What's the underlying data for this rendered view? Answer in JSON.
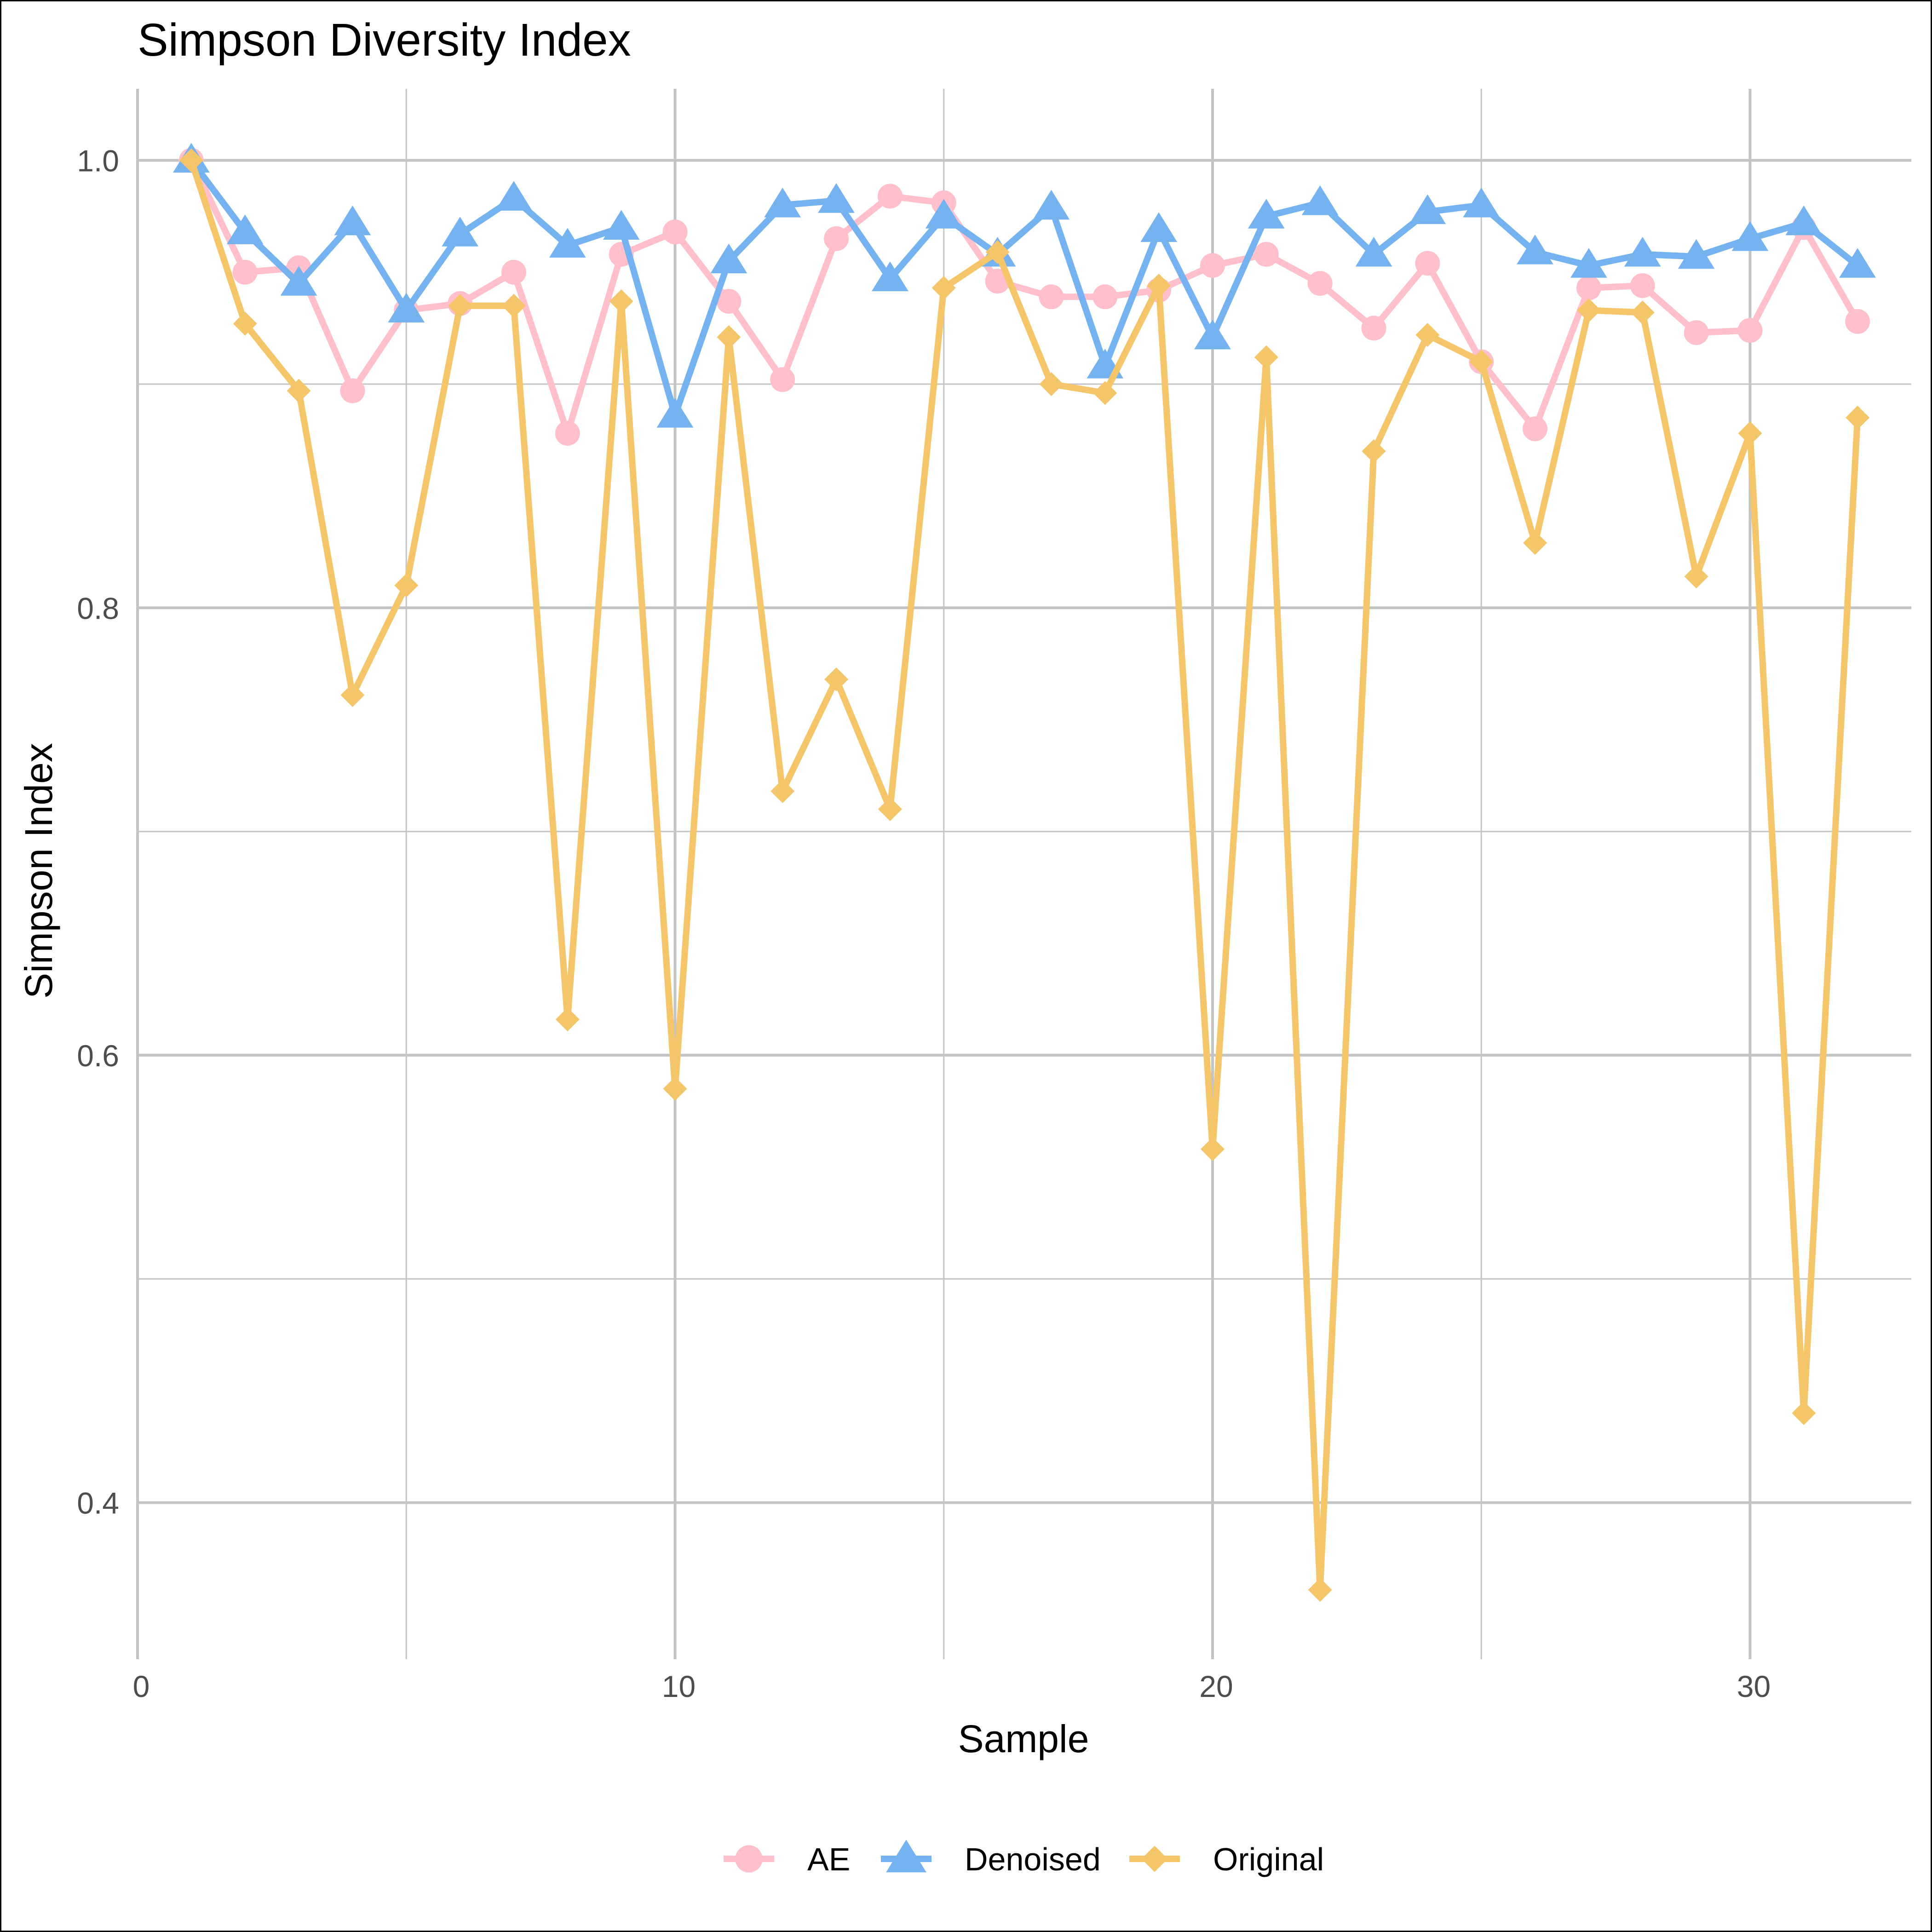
{
  "chart_data": {
    "type": "line",
    "title": "Simpson Diversity Index",
    "xlabel": "Sample",
    "ylabel": "Simpson Index",
    "xlim": [
      0,
      33
    ],
    "ylim": [
      0.33,
      1.032
    ],
    "x_ticks": [
      0,
      10,
      20,
      30
    ],
    "x_tick_labels": [
      "0",
      "10",
      "20",
      "30"
    ],
    "y_ticks": [
      0.4,
      0.6,
      0.8,
      1.0
    ],
    "y_tick_labels": [
      "0.4",
      "0.6",
      "0.8",
      "1.0"
    ],
    "grid": true,
    "legend_position": "bottom",
    "x": [
      1,
      2,
      3,
      4,
      5,
      6,
      7,
      8,
      9,
      10,
      11,
      12,
      13,
      14,
      15,
      16,
      17,
      18,
      19,
      20,
      21,
      22,
      23,
      24,
      25,
      26,
      27,
      28,
      29,
      30,
      31,
      32
    ],
    "series": [
      {
        "name": "AE",
        "color": "#FFC0CB",
        "marker": "circle",
        "values": [
          1.0,
          0.95,
          0.952,
          0.897,
          0.933,
          0.936,
          0.95,
          0.878,
          0.958,
          0.968,
          0.937,
          0.902,
          0.965,
          0.984,
          0.981,
          0.946,
          0.939,
          0.939,
          0.942,
          0.953,
          0.958,
          0.945,
          0.925,
          0.954,
          0.91,
          0.88,
          0.943,
          0.944,
          0.923,
          0.924,
          0.97,
          0.928
        ]
      },
      {
        "name": "Denoised",
        "color": "#74B3F0",
        "marker": "triangle",
        "values": [
          1.0,
          0.968,
          0.945,
          0.972,
          0.933,
          0.967,
          0.983,
          0.962,
          0.97,
          0.886,
          0.955,
          0.98,
          0.982,
          0.947,
          0.975,
          0.958,
          0.979,
          0.908,
          0.969,
          0.921,
          0.975,
          0.981,
          0.958,
          0.977,
          0.98,
          0.959,
          0.953,
          0.958,
          0.957,
          0.965,
          0.972,
          0.953
        ]
      },
      {
        "name": "Original",
        "color": "#F5C56A",
        "marker": "diamond",
        "values": [
          1.0,
          0.927,
          0.897,
          0.761,
          0.81,
          0.935,
          0.935,
          0.616,
          0.937,
          0.585,
          0.921,
          0.718,
          0.768,
          0.71,
          0.943,
          0.959,
          0.9,
          0.896,
          0.944,
          0.558,
          0.912,
          0.361,
          0.87,
          0.922,
          0.91,
          0.829,
          0.933,
          0.932,
          0.814,
          0.878,
          0.44,
          0.885
        ]
      }
    ]
  }
}
